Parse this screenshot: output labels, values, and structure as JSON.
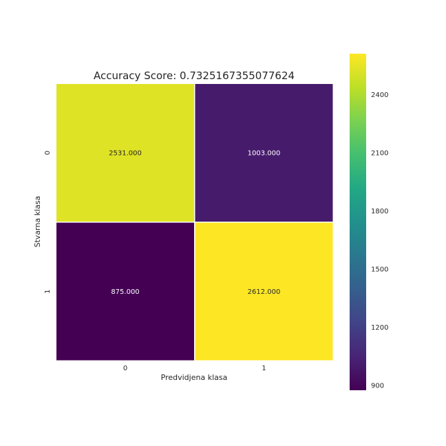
{
  "chart_data": {
    "type": "heatmap",
    "title": "Accuracy Score: 0.7325167355077624",
    "xlabel": "Predvidjena klasa",
    "ylabel": "Stvarna klasa",
    "x_tick_labels": [
      "0",
      "1"
    ],
    "y_tick_labels": [
      "0",
      "1"
    ],
    "matrix": [
      [
        2531,
        1003
      ],
      [
        875,
        2612
      ]
    ],
    "cell_labels": [
      [
        "2531.000",
        "1003.000"
      ],
      [
        "875.000",
        "2612.000"
      ]
    ],
    "colormap": "viridis",
    "colorbar": {
      "range": [
        875,
        2612
      ],
      "ticks": [
        "900",
        "1200",
        "1500",
        "1800",
        "2100",
        "2400"
      ]
    }
  }
}
